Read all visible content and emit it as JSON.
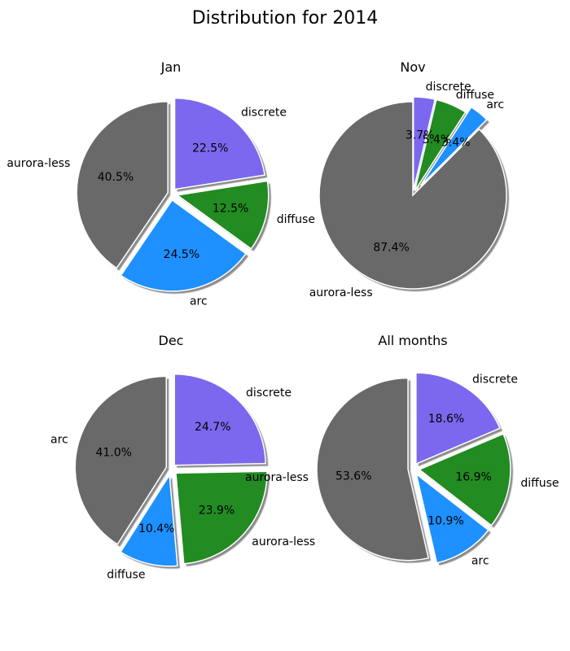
{
  "title": "Distribution for 2014",
  "chart_data": [
    {
      "type": "pie",
      "title": "Jan",
      "slices": [
        {
          "label": "discrete",
          "value": 22.5,
          "pct_label": "22.5%",
          "color": "#7B68EE"
        },
        {
          "label": "diffuse",
          "value": 12.5,
          "pct_label": "12.5%",
          "color": "#228B22"
        },
        {
          "label": "arc",
          "value": 24.5,
          "pct_label": "24.5%",
          "color": "#1E90FF"
        },
        {
          "label": "aurora-less",
          "value": 40.5,
          "pct_label": "40.5%",
          "color": "#696969"
        }
      ]
    },
    {
      "type": "pie",
      "title": "Nov",
      "slices": [
        {
          "label": "discrete",
          "value": 3.7,
          "pct_label": "3.7%",
          "color": "#7B68EE"
        },
        {
          "label": "diffuse",
          "value": 5.4,
          "pct_label": "5.4%",
          "color": "#228B22"
        },
        {
          "label": "arc",
          "value": 3.4,
          "pct_label": "3.4%",
          "color": "#1E90FF"
        },
        {
          "label": "aurora-less",
          "value": 87.4,
          "pct_label": "87.4%",
          "color": "#696969"
        }
      ]
    },
    {
      "type": "pie",
      "title": "Dec",
      "slices": [
        {
          "label": "discrete",
          "value": 24.7,
          "pct_label": "24.7%",
          "color": "#7B68EE"
        },
        {
          "label": "aurora-less",
          "value": 23.9,
          "pct_label": "23.9%",
          "color": "#228B22"
        },
        {
          "label": "diffuse",
          "value": 10.4,
          "pct_label": "10.4%",
          "color": "#1E90FF"
        },
        {
          "label": "arc",
          "value": 41.0,
          "pct_label": "41.0%",
          "color": "#696969"
        }
      ],
      "extra_labels": [
        "aurora-less"
      ]
    },
    {
      "type": "pie",
      "title": "All months",
      "slices": [
        {
          "label": "discrete",
          "value": 18.6,
          "pct_label": "18.6%",
          "color": "#7B68EE"
        },
        {
          "label": "diffuse",
          "value": 16.9,
          "pct_label": "16.9%",
          "color": "#228B22"
        },
        {
          "label": "arc",
          "value": 10.9,
          "pct_label": "10.9%",
          "color": "#1E90FF"
        },
        {
          "label": "",
          "value": 53.6,
          "pct_label": "53.6%",
          "color": "#696969"
        }
      ]
    }
  ]
}
